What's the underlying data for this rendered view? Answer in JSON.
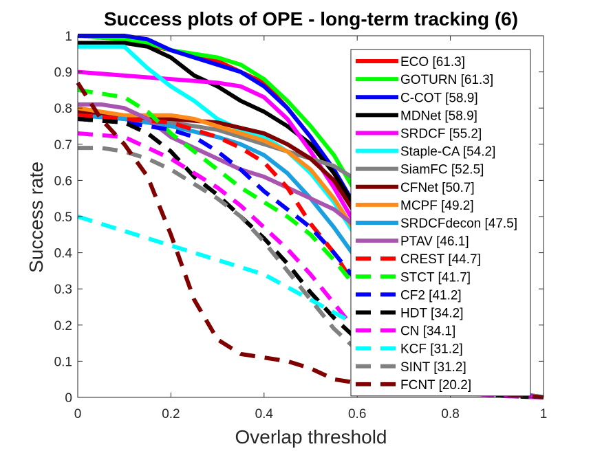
{
  "chart_data": {
    "type": "line",
    "title": "Success plots of OPE - long-term tracking (6)",
    "xlabel": "Overlap threshold",
    "ylabel": "Success rate",
    "xlim": [
      0,
      1
    ],
    "ylim": [
      0,
      1
    ],
    "xticks": [
      "0",
      "0.2",
      "0.4",
      "0.6",
      "0.8",
      "1"
    ],
    "yticks": [
      "0",
      "0.1",
      "0.2",
      "0.3",
      "0.4",
      "0.5",
      "0.6",
      "0.7",
      "0.8",
      "0.9",
      "1"
    ],
    "grid": false,
    "legend_position": "top-right",
    "series": [
      {
        "name": "ECO [61.3]",
        "color": "#ff0000",
        "dashed": false,
        "x": [
          0,
          0.1,
          0.2,
          0.3,
          0.4,
          0.45,
          0.5,
          0.55,
          0.6,
          0.65,
          0.7,
          0.75,
          0.8,
          0.85,
          0.9,
          0.95,
          1
        ],
        "y": [
          1.0,
          0.99,
          0.96,
          0.93,
          0.87,
          0.8,
          0.72,
          0.62,
          0.52,
          0.4,
          0.3,
          0.2,
          0.12,
          0.06,
          0.03,
          0.01,
          0
        ]
      },
      {
        "name": "GOTURN [61.3]",
        "color": "#00ff00",
        "dashed": false,
        "x": [
          0,
          0.1,
          0.15,
          0.2,
          0.3,
          0.35,
          0.4,
          0.45,
          0.5,
          0.55,
          0.6,
          0.65,
          0.7,
          0.75,
          0.8,
          0.85,
          0.9,
          0.95,
          1
        ],
        "y": [
          1.0,
          0.99,
          0.98,
          0.96,
          0.94,
          0.92,
          0.88,
          0.82,
          0.75,
          0.67,
          0.56,
          0.44,
          0.32,
          0.2,
          0.11,
          0.05,
          0.02,
          0.01,
          0
        ]
      },
      {
        "name": "C-COT [58.9]",
        "color": "#0000ff",
        "dashed": false,
        "x": [
          0,
          0.1,
          0.15,
          0.2,
          0.3,
          0.35,
          0.4,
          0.45,
          0.5,
          0.55,
          0.6,
          0.65,
          0.7,
          0.75,
          0.8,
          0.85,
          0.9,
          0.95,
          1
        ],
        "y": [
          1.0,
          1.0,
          0.99,
          0.96,
          0.92,
          0.9,
          0.86,
          0.8,
          0.72,
          0.63,
          0.52,
          0.4,
          0.29,
          0.19,
          0.1,
          0.05,
          0.02,
          0.01,
          0
        ]
      },
      {
        "name": "MDNet [58.9]",
        "color": "#000000",
        "dashed": false,
        "x": [
          0,
          0.1,
          0.15,
          0.2,
          0.25,
          0.3,
          0.35,
          0.4,
          0.45,
          0.5,
          0.55,
          0.6,
          0.65,
          0.7,
          0.75,
          0.8,
          0.85,
          0.9,
          0.95,
          1
        ],
        "y": [
          0.98,
          0.98,
          0.97,
          0.94,
          0.89,
          0.86,
          0.82,
          0.79,
          0.75,
          0.7,
          0.62,
          0.52,
          0.4,
          0.3,
          0.2,
          0.12,
          0.06,
          0.03,
          0.01,
          0
        ]
      },
      {
        "name": "SRDCF [55.2]",
        "color": "#ff00ff",
        "dashed": false,
        "x": [
          0,
          0.1,
          0.2,
          0.3,
          0.35,
          0.4,
          0.45,
          0.5,
          0.55,
          0.6,
          0.65,
          0.7,
          0.75,
          0.8,
          0.85,
          0.9,
          0.95,
          1
        ],
        "y": [
          0.9,
          0.89,
          0.88,
          0.87,
          0.86,
          0.83,
          0.77,
          0.68,
          0.58,
          0.47,
          0.36,
          0.26,
          0.17,
          0.1,
          0.05,
          0.02,
          0.01,
          0
        ]
      },
      {
        "name": "Staple-CA [54.2]",
        "color": "#00ffff",
        "dashed": false,
        "x": [
          0,
          0.1,
          0.15,
          0.2,
          0.25,
          0.3,
          0.35,
          0.4,
          0.45,
          0.5,
          0.55,
          0.6,
          0.65,
          0.7,
          0.75,
          0.8,
          0.85,
          0.9,
          0.95,
          1
        ],
        "y": [
          0.97,
          0.97,
          0.91,
          0.86,
          0.82,
          0.77,
          0.74,
          0.72,
          0.68,
          0.62,
          0.54,
          0.44,
          0.34,
          0.25,
          0.17,
          0.1,
          0.05,
          0.02,
          0.01,
          0
        ]
      },
      {
        "name": "SiamFC [52.5]",
        "color": "#808080",
        "dashed": false,
        "x": [
          0,
          0.1,
          0.2,
          0.3,
          0.4,
          0.5,
          0.55,
          0.6,
          0.65,
          0.7,
          0.75,
          0.8,
          0.85,
          0.9,
          0.95,
          1
        ],
        "y": [
          0.78,
          0.77,
          0.76,
          0.74,
          0.7,
          0.66,
          0.64,
          0.6,
          0.5,
          0.38,
          0.26,
          0.16,
          0.08,
          0.04,
          0.01,
          0
        ]
      },
      {
        "name": "CFNet [50.7]",
        "color": "#800000",
        "dashed": false,
        "x": [
          0,
          0.1,
          0.2,
          0.3,
          0.4,
          0.45,
          0.5,
          0.55,
          0.6,
          0.65,
          0.7,
          0.75,
          0.8,
          0.85,
          0.9,
          0.95,
          1
        ],
        "y": [
          0.79,
          0.77,
          0.77,
          0.76,
          0.73,
          0.7,
          0.66,
          0.6,
          0.5,
          0.38,
          0.28,
          0.18,
          0.1,
          0.05,
          0.02,
          0.01,
          0
        ]
      },
      {
        "name": "MCPF [49.2]",
        "color": "#ff8c1a",
        "dashed": false,
        "x": [
          0,
          0.05,
          0.1,
          0.15,
          0.2,
          0.25,
          0.3,
          0.35,
          0.4,
          0.45,
          0.5,
          0.55,
          0.6,
          0.65,
          0.7,
          0.75,
          0.8,
          0.85,
          0.9,
          0.95,
          1
        ],
        "y": [
          0.8,
          0.79,
          0.78,
          0.78,
          0.78,
          0.77,
          0.75,
          0.73,
          0.71,
          0.68,
          0.63,
          0.55,
          0.45,
          0.34,
          0.24,
          0.15,
          0.08,
          0.04,
          0.02,
          0.01,
          0
        ]
      },
      {
        "name": "SRDCFdecon [47.5]",
        "color": "#1a9fe0",
        "dashed": false,
        "x": [
          0,
          0.1,
          0.2,
          0.3,
          0.35,
          0.4,
          0.45,
          0.5,
          0.55,
          0.6,
          0.65,
          0.7,
          0.75,
          0.8,
          0.85,
          0.9,
          0.95,
          1
        ],
        "y": [
          0.78,
          0.77,
          0.75,
          0.72,
          0.7,
          0.67,
          0.62,
          0.55,
          0.47,
          0.38,
          0.29,
          0.21,
          0.14,
          0.08,
          0.04,
          0.02,
          0.01,
          0
        ]
      },
      {
        "name": "PTAV [46.1]",
        "color": "#a855b0",
        "dashed": false,
        "x": [
          0,
          0.05,
          0.1,
          0.15,
          0.2,
          0.25,
          0.3,
          0.35,
          0.4,
          0.45,
          0.5,
          0.55,
          0.6,
          0.65,
          0.7,
          0.75,
          0.8,
          0.85,
          0.9,
          0.95,
          1
        ],
        "y": [
          0.81,
          0.81,
          0.8,
          0.77,
          0.72,
          0.69,
          0.66,
          0.63,
          0.61,
          0.58,
          0.55,
          0.52,
          0.47,
          0.38,
          0.28,
          0.18,
          0.1,
          0.05,
          0.02,
          0.01,
          0
        ]
      },
      {
        "name": "CREST [44.7]",
        "color": "#ff0000",
        "dashed": true,
        "x": [
          0,
          0.1,
          0.2,
          0.3,
          0.35,
          0.4,
          0.45,
          0.5,
          0.55,
          0.6,
          0.65,
          0.7,
          0.75,
          0.8,
          0.85,
          0.9,
          0.95,
          1
        ],
        "y": [
          0.78,
          0.77,
          0.76,
          0.72,
          0.69,
          0.65,
          0.58,
          0.48,
          0.4,
          0.3,
          0.22,
          0.15,
          0.09,
          0.05,
          0.02,
          0.01,
          0.005,
          0
        ]
      },
      {
        "name": "STCT [41.7]",
        "color": "#00ff00",
        "dashed": true,
        "x": [
          0,
          0.05,
          0.1,
          0.15,
          0.2,
          0.25,
          0.3,
          0.35,
          0.4,
          0.45,
          0.5,
          0.55,
          0.6,
          0.65,
          0.7,
          0.75,
          0.8,
          0.85,
          0.9,
          0.95,
          1
        ],
        "y": [
          0.85,
          0.84,
          0.83,
          0.79,
          0.73,
          0.68,
          0.63,
          0.58,
          0.54,
          0.5,
          0.45,
          0.38,
          0.3,
          0.22,
          0.15,
          0.09,
          0.05,
          0.02,
          0.01,
          0.005,
          0
        ]
      },
      {
        "name": "CF2 [41.2]",
        "color": "#0000ff",
        "dashed": true,
        "x": [
          0,
          0.1,
          0.2,
          0.25,
          0.3,
          0.35,
          0.4,
          0.45,
          0.5,
          0.55,
          0.6,
          0.65,
          0.7,
          0.75,
          0.8,
          0.85,
          0.9,
          0.95,
          1
        ],
        "y": [
          0.77,
          0.76,
          0.74,
          0.72,
          0.68,
          0.63,
          0.57,
          0.52,
          0.47,
          0.4,
          0.32,
          0.24,
          0.17,
          0.11,
          0.06,
          0.03,
          0.01,
          0.005,
          0
        ]
      },
      {
        "name": "HDT [34.2]",
        "color": "#000000",
        "dashed": true,
        "x": [
          0,
          0.1,
          0.15,
          0.2,
          0.25,
          0.3,
          0.35,
          0.4,
          0.45,
          0.5,
          0.55,
          0.6,
          0.65,
          0.7,
          0.75,
          0.8,
          0.85,
          0.9,
          0.95,
          1
        ],
        "y": [
          0.77,
          0.76,
          0.73,
          0.68,
          0.61,
          0.56,
          0.5,
          0.44,
          0.37,
          0.29,
          0.22,
          0.16,
          0.11,
          0.07,
          0.04,
          0.02,
          0.01,
          0.005,
          0.002,
          0
        ]
      },
      {
        "name": "CN [34.1]",
        "color": "#ff00ff",
        "dashed": true,
        "x": [
          0,
          0.1,
          0.2,
          0.25,
          0.3,
          0.35,
          0.4,
          0.45,
          0.5,
          0.55,
          0.6,
          0.65,
          0.7,
          0.75,
          0.8,
          0.85,
          0.9,
          0.95,
          1
        ],
        "y": [
          0.73,
          0.72,
          0.66,
          0.62,
          0.58,
          0.53,
          0.47,
          0.41,
          0.34,
          0.26,
          0.18,
          0.12,
          0.07,
          0.04,
          0.02,
          0.01,
          0.005,
          0.002,
          0
        ]
      },
      {
        "name": "KCF [31.2]",
        "color": "#00ffff",
        "dashed": true,
        "x": [
          0,
          0.2,
          0.4,
          0.6,
          0.8,
          1
        ],
        "y": [
          0.5,
          0.42,
          0.34,
          0.2,
          0.06,
          0
        ]
      },
      {
        "name": "SINT [31.2]",
        "color": "#808080",
        "dashed": true,
        "x": [
          0,
          0.05,
          0.1,
          0.15,
          0.2,
          0.25,
          0.3,
          0.35,
          0.4,
          0.45,
          0.5,
          0.55,
          0.6,
          0.65,
          0.7,
          0.75,
          0.8,
          0.85,
          0.9,
          0.95,
          1
        ],
        "y": [
          0.69,
          0.69,
          0.68,
          0.66,
          0.63,
          0.59,
          0.55,
          0.5,
          0.43,
          0.35,
          0.27,
          0.19,
          0.13,
          0.08,
          0.05,
          0.03,
          0.02,
          0.01,
          0.01,
          0.01,
          0
        ]
      },
      {
        "name": "FCNT [20.2]",
        "color": "#800000",
        "dashed": true,
        "x": [
          0,
          0.05,
          0.1,
          0.15,
          0.2,
          0.25,
          0.3,
          0.35,
          0.4,
          0.45,
          0.5,
          0.55,
          0.6,
          0.7,
          0.8,
          0.9,
          1
        ],
        "y": [
          0.87,
          0.77,
          0.7,
          0.61,
          0.45,
          0.27,
          0.16,
          0.12,
          0.11,
          0.1,
          0.08,
          0.05,
          0.04,
          0.03,
          0.02,
          0.01,
          0
        ]
      }
    ]
  }
}
